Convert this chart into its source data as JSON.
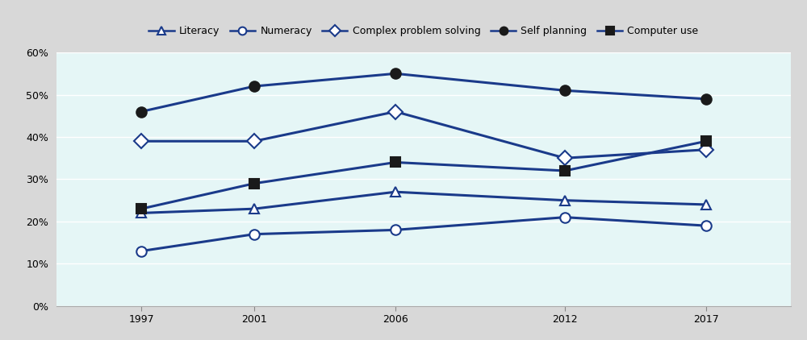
{
  "years": [
    1997,
    2001,
    2006,
    2012,
    2017
  ],
  "series": [
    {
      "label": "Literacy",
      "values": [
        22,
        23,
        27,
        25,
        24
      ],
      "marker": "^",
      "filled": false
    },
    {
      "label": "Numeracy",
      "values": [
        13,
        17,
        18,
        21,
        19
      ],
      "marker": "o",
      "filled": false
    },
    {
      "label": "Complex problem solving",
      "values": [
        39,
        39,
        46,
        35,
        37
      ],
      "marker": "D",
      "filled": false
    },
    {
      "label": "Self planning",
      "values": [
        46,
        52,
        55,
        51,
        49
      ],
      "marker": "o",
      "filled": true
    },
    {
      "label": "Computer use",
      "values": [
        23,
        29,
        34,
        32,
        39
      ],
      "marker": "s",
      "filled": true
    }
  ],
  "line_color": "#1a3a8a",
  "line_width": 2.2,
  "marker_size": 9,
  "ylim": [
    0,
    60
  ],
  "yticks": [
    0,
    10,
    20,
    30,
    40,
    50,
    60
  ],
  "ytick_labels": [
    "0%",
    "10%",
    "20%",
    "30%",
    "40%",
    "50%",
    "60%"
  ],
  "xtick_labels": [
    "1997",
    "2001",
    "2006",
    "2012",
    "2017"
  ],
  "plot_bg_color": "#e5f6f6",
  "legend_bg_color": "#d8d8d8",
  "grid_color": "#ffffff",
  "tick_fontsize": 9,
  "legend_fontsize": 9
}
